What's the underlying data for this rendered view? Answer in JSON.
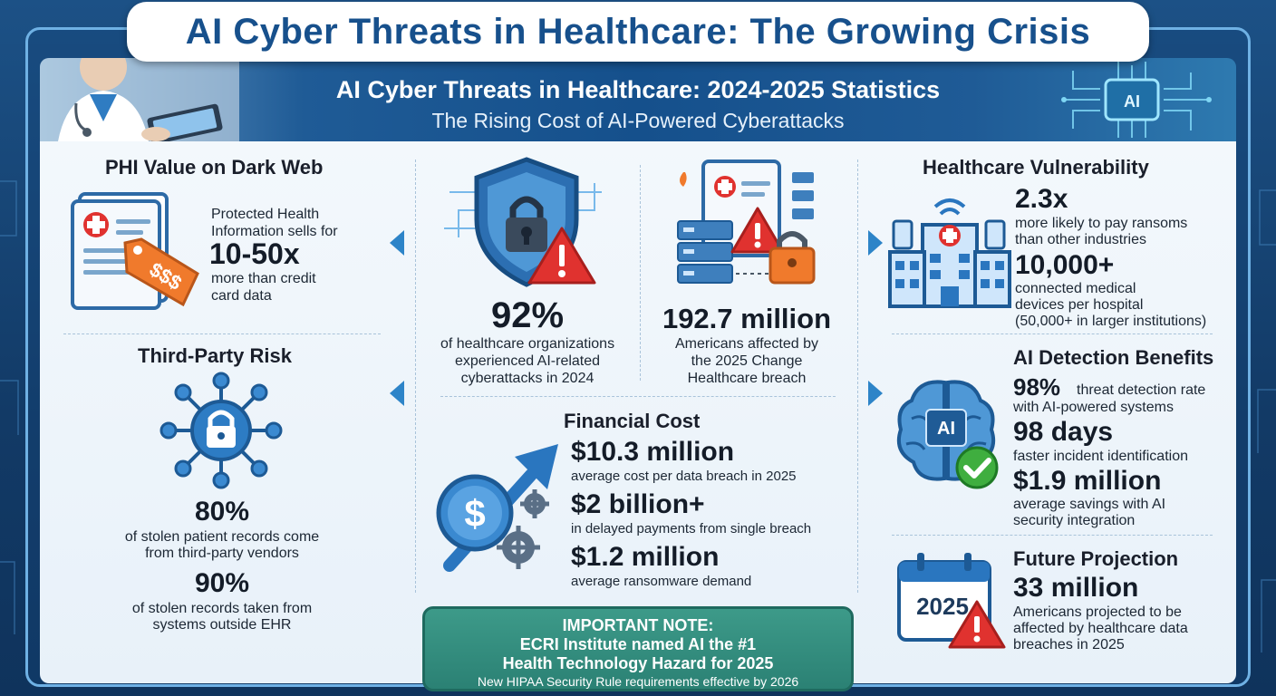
{
  "header": {
    "title": "AI Cyber Threats in Healthcare: The Growing Crisis",
    "subtitle": "AI Cyber Threats in Healthcare: 2024-2025 Statistics",
    "tagline": "The Rising Cost of AI-Powered Cyberattacks",
    "chip_label": "AI"
  },
  "phi": {
    "title": "PHI Value on Dark Web",
    "line1": "Protected Health",
    "line2": "Information sells for",
    "stat": "10-50x",
    "line3": "more than credit",
    "line4": "card data",
    "tag_label": "$$$"
  },
  "third_party": {
    "title": "Third-Party Risk",
    "stat1": "80%",
    "desc1a": "of stolen patient records come",
    "desc1b": "from third-party vendors",
    "stat2": "90%",
    "desc2a": "of stolen records taken from",
    "desc2b": "systems outside EHR"
  },
  "orgs": {
    "stat": "92%",
    "desc_a": "of healthcare organizations",
    "desc_b": "experienced AI-related",
    "desc_c": "cyberattacks in 2024"
  },
  "breach": {
    "stat": "192.7 million",
    "desc_a": "Americans affected by",
    "desc_b": "the 2025 Change",
    "desc_c": "Healthcare breach"
  },
  "financial": {
    "title": "Financial Cost",
    "items": [
      {
        "stat": "$10.3 million",
        "desc": "average cost per data breach in 2025"
      },
      {
        "stat": "$2 billion+",
        "desc": "in delayed payments from single breach"
      },
      {
        "stat": "$1.2 million",
        "desc": "average ransomware demand"
      }
    ],
    "coin_label": "$"
  },
  "vulnerability": {
    "title": "Healthcare Vulnerability",
    "stat1": "2.3x",
    "desc1a": "more likely to pay ransoms",
    "desc1b": "than other industries",
    "stat2": "10,000+",
    "desc2a": "connected medical",
    "desc2b": "devices per hospital",
    "desc2c": "(50,000+ in larger institutions)"
  },
  "ai_benefits": {
    "title": "AI Detection Benefits",
    "stat1": "98%",
    "desc1a": "threat detection rate",
    "desc1b": "with AI-powered systems",
    "stat2": "98 days",
    "desc2": "faster incident identification",
    "stat3": "$1.9 million",
    "desc3a": "average savings with AI",
    "desc3b": "security integration",
    "brain_label": "AI"
  },
  "future": {
    "title": "Future Projection",
    "stat": "33 million",
    "desc_a": "Americans projected to be",
    "desc_b": "affected by healthcare data",
    "desc_c": "breaches in 2025",
    "calendar_label": "2025"
  },
  "note": {
    "heading": "IMPORTANT NOTE:",
    "line1": "ECRI Institute named AI the #1",
    "line2": "Health Technology Hazard for 2025",
    "line3": "New HIPAA Security Rule requirements effective by 2026"
  },
  "colors": {
    "primary_blue": "#17508c",
    "accent_blue": "#2d84c8",
    "alert_red": "#e0322f",
    "tag_orange": "#f07a2c",
    "note_green": "#2b8174",
    "check_green": "#3fae3f"
  }
}
